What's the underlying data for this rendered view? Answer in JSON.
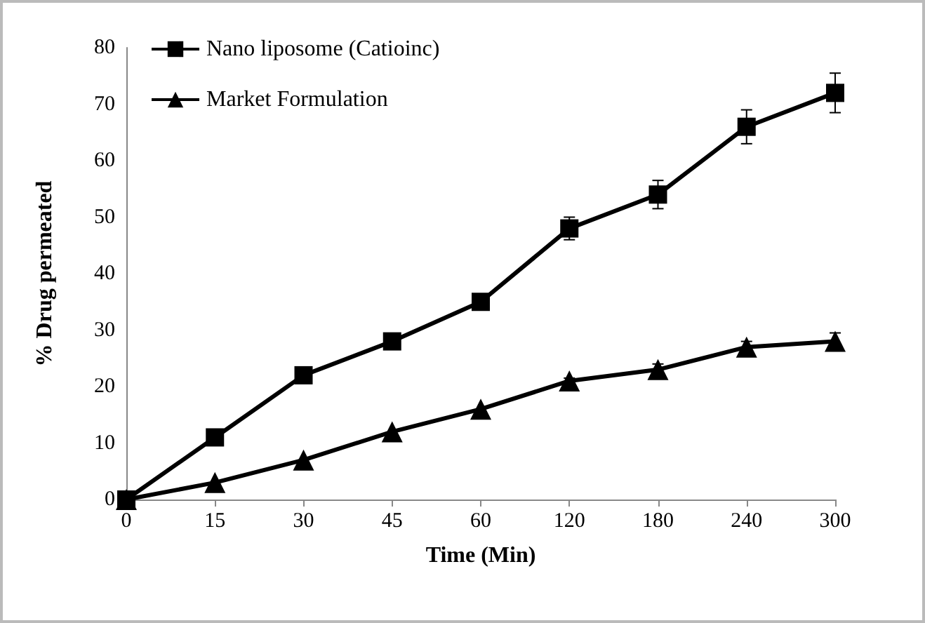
{
  "chart_data": {
    "type": "line",
    "xlabel": "Time (Min)",
    "ylabel": "% Drug permeated",
    "categories": [
      "0",
      "15",
      "30",
      "45",
      "60",
      "120",
      "180",
      "240",
      "300"
    ],
    "series": [
      {
        "name": "Nano liposome (Catioinc)",
        "color": "#000000",
        "marker": "square",
        "values": [
          0,
          11,
          22,
          28,
          35,
          48,
          54,
          66,
          72
        ],
        "errors": [
          null,
          null,
          null,
          null,
          null,
          2,
          2.5,
          3,
          3.5
        ]
      },
      {
        "name": "Market Formulation",
        "color": "#000000",
        "marker": "triangle",
        "values": [
          0,
          3,
          7,
          12,
          16,
          21,
          23,
          27,
          28
        ],
        "errors": [
          null,
          null,
          null,
          null,
          null,
          0.5,
          1,
          1,
          1.5
        ]
      }
    ],
    "ylim": [
      0,
      80
    ],
    "yticks": [
      0,
      10,
      20,
      30,
      40,
      50,
      60,
      70,
      80
    ],
    "grid": false,
    "legend": "top left",
    "line_style": "solid"
  }
}
